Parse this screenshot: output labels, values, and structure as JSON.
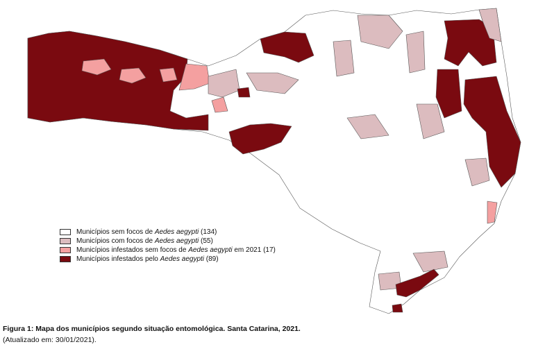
{
  "legend": {
    "items": [
      {
        "prefix": "Municípios sem focos de ",
        "italic": "Aedes aegypti",
        "suffix": " (134)",
        "color": "#ffffff"
      },
      {
        "prefix": "Municípios com focos de ",
        "italic": "Aedes aegypti",
        "suffix": " (55)",
        "color": "#dcbcbf"
      },
      {
        "prefix": "Municípios infestados sem focos de ",
        "italic": "Aedes aegypti",
        "suffix": " em 2021 (17)",
        "color": "#f4a0a0"
      },
      {
        "prefix": "Municípios infestados pelo ",
        "italic": "Aedes aegypti",
        "suffix": " (89)",
        "color": "#7a0a10"
      }
    ]
  },
  "caption": {
    "title": "Figura 1: Mapa dos municípios segundo situação entomológica. Santa Catarina, 2021.",
    "note": "(Atualizado em: 30/01/2021)."
  }
}
